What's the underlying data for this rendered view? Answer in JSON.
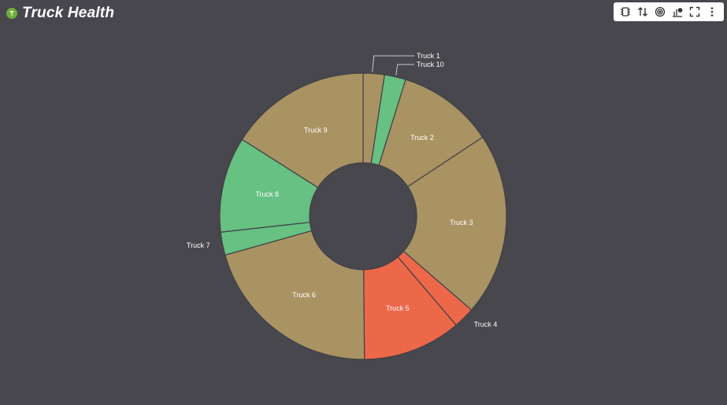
{
  "header": {
    "title": "Truck Health",
    "logo_icon": "truck-logo-icon"
  },
  "toolbar": {
    "icons": [
      "chip-icon",
      "sort-arrows-icon",
      "target-icon",
      "chart-settings-icon",
      "fullscreen-icon",
      "more-vertical-icon"
    ]
  },
  "colors": {
    "background": "#47474d",
    "tan": "#a99363",
    "green": "#66c183",
    "red": "#ed6849",
    "border": "#404046"
  },
  "chart_data": {
    "type": "pie",
    "donut": true,
    "title": "",
    "legend": "none",
    "series": [
      {
        "labels": [
          "Truck 1",
          "Truck 10",
          "Truck 2",
          "Truck 3",
          "Truck 4",
          "Truck 5",
          "Truck 6",
          "Truck 7",
          "Truck 8",
          "Truck 9"
        ],
        "values": [
          2.4,
          2.4,
          10.9,
          20.7,
          2.4,
          11.1,
          20.8,
          2.6,
          10.8,
          16.0
        ],
        "colors": [
          "#a99363",
          "#66c183",
          "#a99363",
          "#a99363",
          "#ed6849",
          "#ed6849",
          "#a99363",
          "#66c183",
          "#66c183",
          "#a99363"
        ]
      }
    ]
  }
}
